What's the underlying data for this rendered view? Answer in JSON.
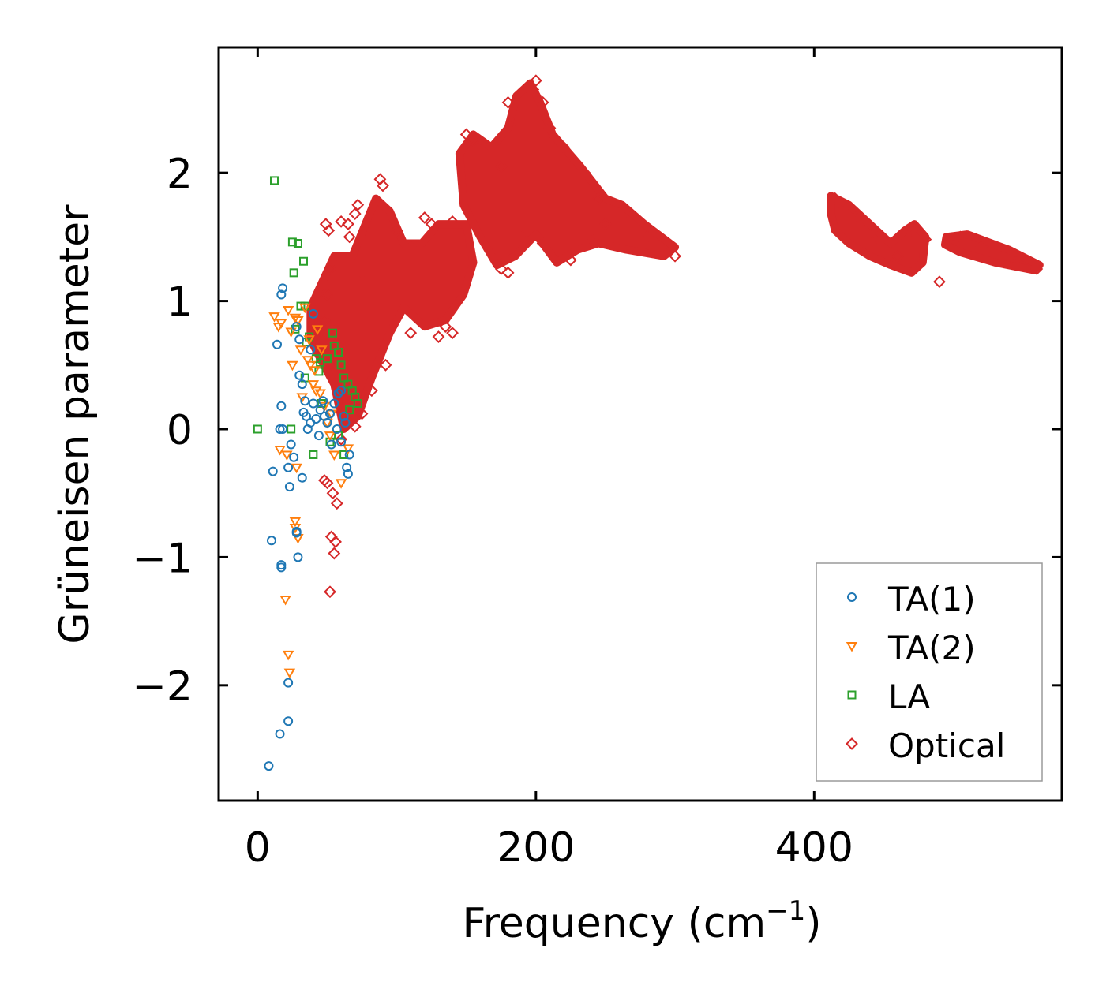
{
  "chart_data": {
    "type": "scatter",
    "xlabel": "Frequency (cm",
    "xlabel_sup": "−1",
    "xlabel_close": ")",
    "ylabel": "Grüneisen parameter",
    "xlim": [
      -28,
      578
    ],
    "ylim": [
      -2.9,
      2.98
    ],
    "xticks": [
      0,
      200,
      400
    ],
    "xtick_labels": [
      "0",
      "200",
      "400"
    ],
    "yticks": [
      -2,
      -1,
      0,
      1,
      2
    ],
    "ytick_labels": [
      "−2",
      "−1",
      "0",
      "1",
      "2"
    ],
    "legend_position": "lower-right",
    "series": [
      {
        "name": "TA(1)",
        "marker": "circle",
        "color": "#1f77b4",
        "points": [
          [
            8,
            -2.63
          ],
          [
            16,
            -2.38
          ],
          [
            22,
            -2.28
          ],
          [
            22,
            -1.98
          ],
          [
            10,
            -0.87
          ],
          [
            17,
            -1.08
          ],
          [
            17,
            -1.06
          ],
          [
            29,
            -1.0
          ],
          [
            28,
            -0.81
          ],
          [
            28,
            -0.8
          ],
          [
            11,
            -0.33
          ],
          [
            22,
            -0.3
          ],
          [
            23,
            -0.45
          ],
          [
            32,
            -0.38
          ],
          [
            16,
            0.0
          ],
          [
            18,
            0.0
          ],
          [
            17,
            0.18
          ],
          [
            26,
            -0.22
          ],
          [
            14,
            0.66
          ],
          [
            17,
            1.05
          ],
          [
            18,
            1.1
          ],
          [
            30,
            0.7
          ],
          [
            28,
            0.8
          ],
          [
            30,
            0.42
          ],
          [
            32,
            0.35
          ],
          [
            33,
            0.13
          ],
          [
            35,
            0.1
          ],
          [
            38,
            0.05
          ],
          [
            40,
            0.2
          ],
          [
            42,
            0.08
          ],
          [
            45,
            0.15
          ],
          [
            48,
            0.1
          ],
          [
            50,
            0.05
          ],
          [
            52,
            0.12
          ],
          [
            55,
            0.2
          ],
          [
            58,
            0.28
          ],
          [
            60,
            0.3
          ],
          [
            62,
            0.1
          ],
          [
            64,
            -0.3
          ],
          [
            65,
            -0.35
          ],
          [
            66,
            -0.2
          ],
          [
            60,
            -0.1
          ],
          [
            57,
            0.0
          ],
          [
            36,
            0.0
          ],
          [
            44,
            -0.05
          ],
          [
            34,
            0.22
          ],
          [
            47,
            0.22
          ],
          [
            53,
            -0.12
          ],
          [
            24,
            -0.12
          ],
          [
            63,
            0.05
          ],
          [
            40,
            0.9
          ],
          [
            38,
            0.62
          ]
        ]
      },
      {
        "name": "TA(2)",
        "marker": "triangle-down",
        "color": "#ff7f0e",
        "points": [
          [
            20,
            -1.33
          ],
          [
            22,
            -1.76
          ],
          [
            23,
            -1.9
          ],
          [
            27,
            -0.72
          ],
          [
            29,
            -0.85
          ],
          [
            27,
            -0.77
          ],
          [
            28,
            -0.3
          ],
          [
            21,
            -0.2
          ],
          [
            16,
            -0.16
          ],
          [
            12,
            0.88
          ],
          [
            15,
            0.8
          ],
          [
            17,
            0.83
          ],
          [
            22,
            0.93
          ],
          [
            24,
            0.76
          ],
          [
            27,
            0.87
          ],
          [
            29,
            0.85
          ],
          [
            31,
            0.62
          ],
          [
            34,
            0.95
          ],
          [
            36,
            0.54
          ],
          [
            38,
            0.5
          ],
          [
            40,
            0.35
          ],
          [
            42,
            0.3
          ],
          [
            45,
            0.28
          ],
          [
            43,
            0.78
          ],
          [
            48,
            0.18
          ],
          [
            50,
            0.05
          ],
          [
            52,
            -0.05
          ],
          [
            55,
            -0.2
          ],
          [
            60,
            -0.42
          ],
          [
            65,
            -0.15
          ],
          [
            25,
            0.5
          ],
          [
            32,
            0.25
          ],
          [
            46,
            0.62
          ],
          [
            37,
            0.7
          ],
          [
            41,
            0.46
          ],
          [
            53,
            0.12
          ]
        ]
      },
      {
        "name": "LA",
        "marker": "square",
        "color": "#2ca02c",
        "points": [
          [
            0,
            0.0
          ],
          [
            12,
            1.94
          ],
          [
            25,
            1.46
          ],
          [
            29,
            1.45
          ],
          [
            26,
            1.22
          ],
          [
            33,
            1.31
          ],
          [
            31,
            0.96
          ],
          [
            34,
            0.96
          ],
          [
            27,
            0.78
          ],
          [
            37,
            0.72
          ],
          [
            35,
            0.68
          ],
          [
            42,
            0.55
          ],
          [
            45,
            0.52
          ],
          [
            44,
            0.45
          ],
          [
            50,
            0.55
          ],
          [
            54,
            0.75
          ],
          [
            55,
            0.65
          ],
          [
            58,
            0.6
          ],
          [
            60,
            0.5
          ],
          [
            62,
            0.4
          ],
          [
            65,
            0.35
          ],
          [
            68,
            0.3
          ],
          [
            70,
            0.25
          ],
          [
            72,
            0.2
          ],
          [
            66,
            0.15
          ],
          [
            58,
            -0.05
          ],
          [
            52,
            -0.1
          ],
          [
            40,
            -0.2
          ],
          [
            24,
            0.0
          ],
          [
            62,
            -0.2
          ],
          [
            46,
            0.2
          ],
          [
            34,
            0.4
          ]
        ]
      },
      {
        "name": "Optical",
        "marker": "diamond",
        "color": "#d62728",
        "points": [
          [
            52,
            -1.27
          ],
          [
            55,
            -0.97
          ],
          [
            53,
            -0.84
          ],
          [
            56,
            -0.88
          ],
          [
            57,
            -0.58
          ],
          [
            54,
            -0.5
          ],
          [
            50,
            -0.42
          ],
          [
            48,
            -0.4
          ],
          [
            45,
            0.7
          ],
          [
            48,
            0.85
          ],
          [
            50,
            1.05
          ],
          [
            52,
            1.25
          ],
          [
            49,
            1.6
          ],
          [
            51,
            1.55
          ],
          [
            60,
            1.62
          ],
          [
            66,
            1.5
          ],
          [
            65,
            1.6
          ],
          [
            70,
            1.68
          ],
          [
            72,
            1.75
          ],
          [
            75,
            1.22
          ],
          [
            90,
            1.9
          ],
          [
            88,
            1.95
          ],
          [
            100,
            1.55
          ],
          [
            110,
            1.42
          ],
          [
            120,
            1.65
          ],
          [
            125,
            1.6
          ],
          [
            140,
            1.62
          ],
          [
            140,
            0.75
          ],
          [
            135,
            0.8
          ],
          [
            130,
            0.72
          ],
          [
            110,
            0.75
          ],
          [
            92,
            0.5
          ],
          [
            82,
            0.3
          ],
          [
            75,
            0.12
          ],
          [
            70,
            0.02
          ],
          [
            60,
            -0.08
          ],
          [
            155,
            2.25
          ],
          [
            150,
            2.3
          ],
          [
            175,
            2.05
          ],
          [
            180,
            2.55
          ],
          [
            185,
            2.4
          ],
          [
            200,
            2.72
          ],
          [
            198,
            2.65
          ],
          [
            205,
            2.55
          ],
          [
            210,
            2.35
          ],
          [
            220,
            2.2
          ],
          [
            235,
            2.0
          ],
          [
            245,
            1.8
          ],
          [
            250,
            1.6
          ],
          [
            265,
            1.7
          ],
          [
            280,
            1.5
          ],
          [
            300,
            1.35
          ],
          [
            175,
            1.25
          ],
          [
            180,
            1.22
          ],
          [
            190,
            1.5
          ],
          [
            205,
            1.45
          ],
          [
            225,
            1.32
          ],
          [
            240,
            1.48
          ],
          [
            415,
            1.8
          ],
          [
            420,
            1.72
          ],
          [
            430,
            1.65
          ],
          [
            445,
            1.5
          ],
          [
            460,
            1.35
          ],
          [
            470,
            1.55
          ],
          [
            480,
            1.48
          ],
          [
            490,
            1.15
          ],
          [
            505,
            1.5
          ],
          [
            520,
            1.42
          ],
          [
            545,
            1.3
          ],
          [
            560,
            1.25
          ]
        ],
        "dense_regions": [
          [
            [
              38,
              0.95
            ],
            [
              55,
              1.35
            ],
            [
              68,
              1.35
            ],
            [
              85,
              1.8
            ],
            [
              95,
              1.7
            ],
            [
              105,
              1.45
            ],
            [
              118,
              1.45
            ],
            [
              130,
              1.6
            ],
            [
              150,
              1.6
            ],
            [
              155,
              1.3
            ],
            [
              148,
              1.05
            ],
            [
              135,
              0.85
            ],
            [
              120,
              0.8
            ],
            [
              105,
              0.95
            ],
            [
              95,
              0.75
            ],
            [
              82,
              0.4
            ],
            [
              72,
              0.1
            ],
            [
              62,
              0.0
            ],
            [
              55,
              0.35
            ],
            [
              45,
              0.55
            ],
            [
              38,
              0.7
            ]
          ],
          [
            [
              145,
              2.15
            ],
            [
              155,
              2.3
            ],
            [
              168,
              2.2
            ],
            [
              180,
              2.35
            ],
            [
              186,
              2.6
            ],
            [
              196,
              2.7
            ],
            [
              203,
              2.55
            ],
            [
              212,
              2.3
            ],
            [
              232,
              2.05
            ],
            [
              250,
              1.8
            ],
            [
              262,
              1.75
            ],
            [
              278,
              1.6
            ],
            [
              300,
              1.42
            ],
            [
              292,
              1.35
            ],
            [
              265,
              1.4
            ],
            [
              245,
              1.45
            ],
            [
              230,
              1.4
            ],
            [
              215,
              1.3
            ],
            [
              200,
              1.52
            ],
            [
              185,
              1.35
            ],
            [
              172,
              1.28
            ],
            [
              160,
              1.5
            ],
            [
              148,
              1.75
            ]
          ],
          [
            [
              412,
              1.82
            ],
            [
              425,
              1.75
            ],
            [
              440,
              1.6
            ],
            [
              455,
              1.45
            ],
            [
              465,
              1.55
            ],
            [
              472,
              1.6
            ],
            [
              480,
              1.5
            ],
            [
              478,
              1.3
            ],
            [
              470,
              1.22
            ],
            [
              455,
              1.28
            ],
            [
              440,
              1.35
            ],
            [
              425,
              1.45
            ],
            [
              415,
              1.55
            ],
            [
              412,
              1.68
            ]
          ],
          [
            [
              495,
              1.5
            ],
            [
              510,
              1.52
            ],
            [
              540,
              1.4
            ],
            [
              562,
              1.28
            ],
            [
              558,
              1.24
            ],
            [
              530,
              1.3
            ],
            [
              505,
              1.38
            ],
            [
              494,
              1.44
            ]
          ]
        ]
      }
    ]
  }
}
